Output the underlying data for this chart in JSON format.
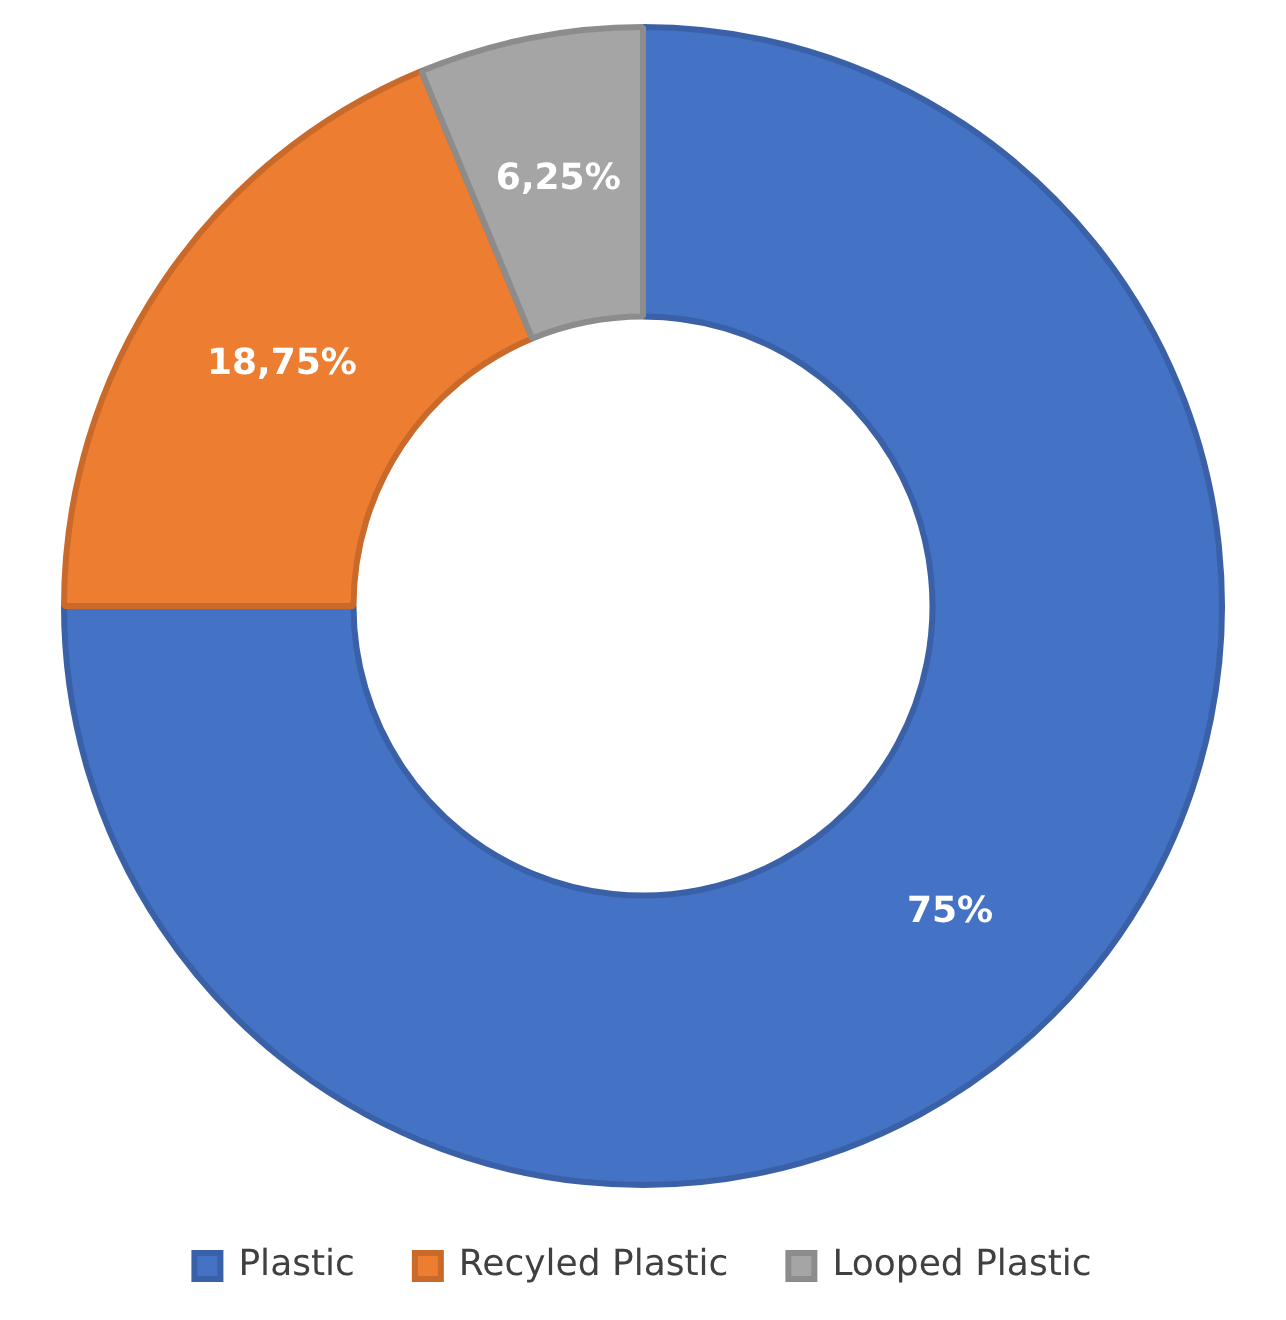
{
  "chart_data": {
    "type": "donut",
    "categories": [
      "Plastic",
      "Recyled Plastic",
      "Looped Plastic"
    ],
    "values": [
      75,
      18.75,
      6.25
    ],
    "value_labels": [
      "75%",
      "18,75%",
      "6,25%"
    ],
    "colors": [
      "#4472c4",
      "#ed7d31",
      "#a5a5a5"
    ],
    "legend": "bottom"
  }
}
